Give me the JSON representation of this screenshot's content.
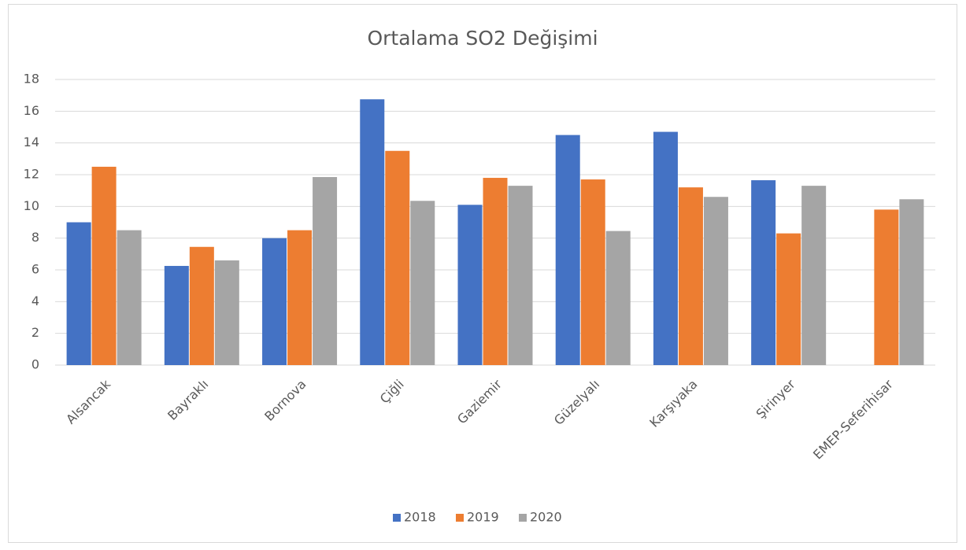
{
  "chart_data": {
    "type": "bar",
    "title": "Ortalama SO2 Değişimi",
    "categories": [
      "Alsancak",
      "Bayraklı",
      "Bornova",
      "Çiğli",
      "Gaziemir",
      "Güzelyalı",
      "Karşıyaka",
      "Şirinyer",
      "EMEP-Seferihisar"
    ],
    "series": [
      {
        "name": "2018",
        "color": "#4472c4",
        "values": [
          9.0,
          6.25,
          8.0,
          16.75,
          10.1,
          14.5,
          14.7,
          11.65,
          null
        ]
      },
      {
        "name": "2019",
        "color": "#ed7d31",
        "values": [
          12.5,
          7.45,
          8.5,
          13.5,
          11.8,
          11.7,
          11.2,
          8.3,
          9.8
        ]
      },
      {
        "name": "2020",
        "color": "#a5a5a5",
        "values": [
          8.5,
          6.6,
          11.85,
          10.35,
          11.3,
          8.45,
          10.6,
          11.3,
          10.45
        ]
      }
    ],
    "ylim": [
      0,
      18
    ],
    "yticks": [
      0,
      2,
      4,
      6,
      8,
      10,
      12,
      14,
      16,
      18
    ],
    "grid": true,
    "legend": "bottom"
  }
}
